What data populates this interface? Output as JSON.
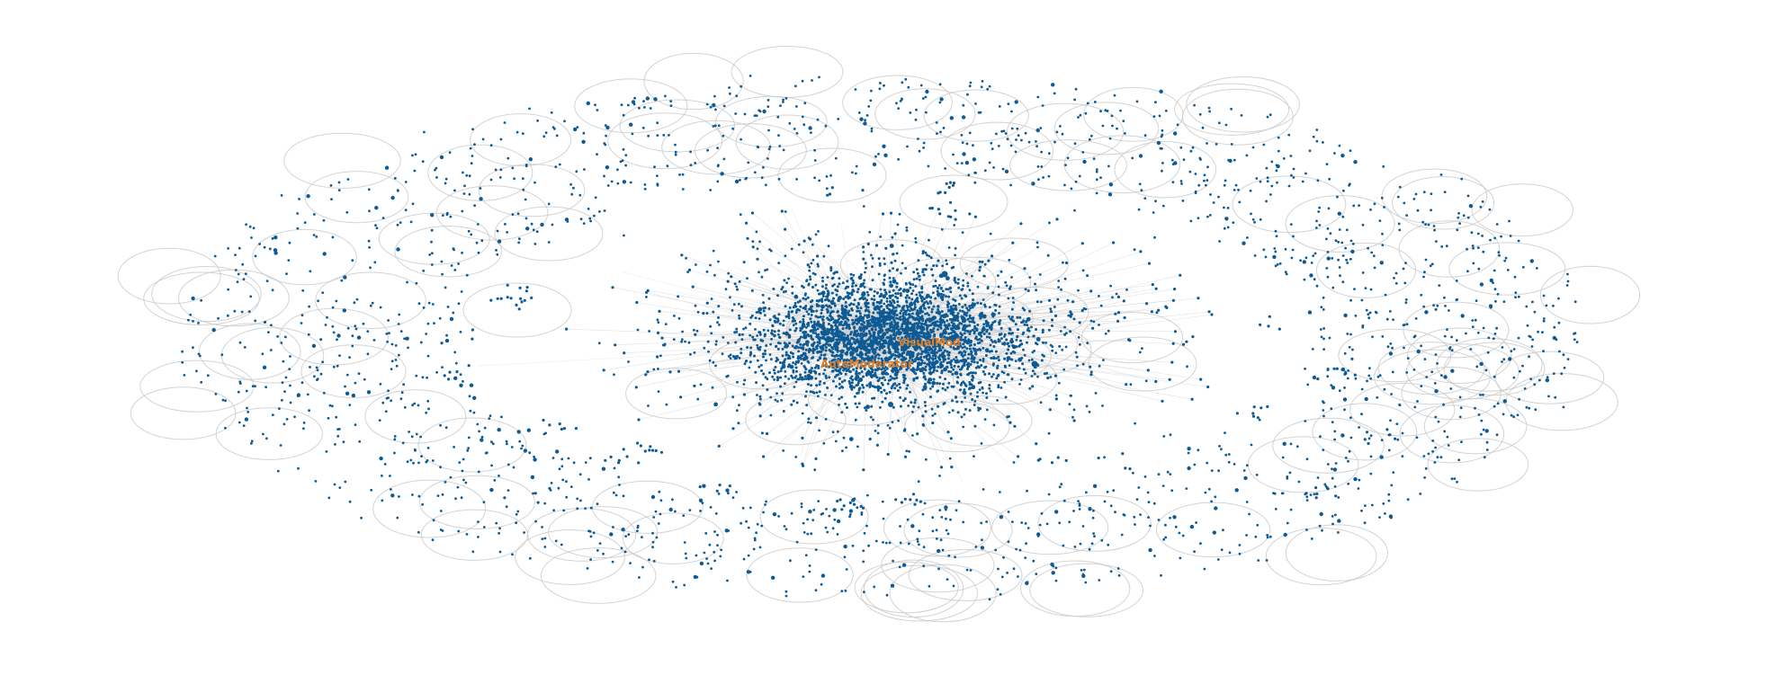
{
  "graph": {
    "node_color": "#0d5a94",
    "edge_color": "#c8c8c8",
    "label_color": "#e07b22",
    "labels": {
      "visualmod": "VisualMod",
      "automoderator": "AutoModerator"
    }
  }
}
